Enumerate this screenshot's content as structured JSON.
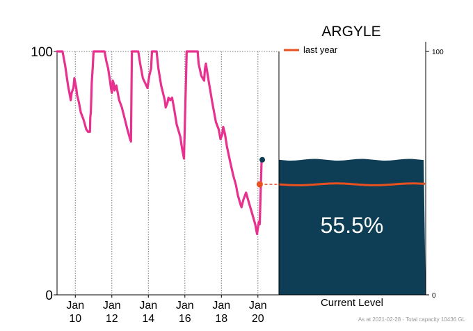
{
  "chart_data": {
    "type": "line",
    "title": "ARGYLE",
    "y_left_ticks": [
      "100",
      "0"
    ],
    "y_right_ticks": [
      "100",
      "0"
    ],
    "ylim": [
      0,
      100
    ],
    "x_ticks": [
      {
        "month": "Jan",
        "year": "10",
        "x": 2010
      },
      {
        "month": "Jan",
        "year": "12",
        "x": 2012
      },
      {
        "month": "Jan",
        "year": "14",
        "x": 2014
      },
      {
        "month": "Jan",
        "year": "16",
        "x": 2016
      },
      {
        "month": "Jan",
        "year": "18",
        "x": 2018
      },
      {
        "month": "Jan",
        "year": "20",
        "x": 2020
      }
    ],
    "xlim": [
      2009.0,
      2021.15
    ],
    "legend": {
      "label": "last year",
      "color": "#e8501f",
      "position": "top-left of right panel"
    },
    "series": [
      {
        "color": "#e8308f",
        "points": [
          [
            2009.0,
            100
          ],
          [
            2009.3,
            100
          ],
          [
            2009.45,
            94
          ],
          [
            2009.6,
            86
          ],
          [
            2009.75,
            80
          ],
          [
            2009.8,
            83
          ],
          [
            2009.9,
            85
          ],
          [
            2009.95,
            89
          ],
          [
            2010.05,
            85
          ],
          [
            2010.1,
            82
          ],
          [
            2010.2,
            79
          ],
          [
            2010.3,
            75
          ],
          [
            2010.45,
            72
          ],
          [
            2010.6,
            68
          ],
          [
            2010.7,
            67
          ],
          [
            2010.8,
            67
          ],
          [
            2010.82,
            73
          ],
          [
            2010.85,
            75
          ],
          [
            2010.9,
            87
          ],
          [
            2010.95,
            93
          ],
          [
            2011.0,
            100
          ],
          [
            2011.6,
            100
          ],
          [
            2011.7,
            96
          ],
          [
            2011.8,
            93
          ],
          [
            2011.9,
            88
          ],
          [
            2011.95,
            85
          ],
          [
            2012.0,
            83
          ],
          [
            2012.05,
            88
          ],
          [
            2012.1,
            87
          ],
          [
            2012.15,
            84
          ],
          [
            2012.25,
            86
          ],
          [
            2012.3,
            84
          ],
          [
            2012.4,
            80
          ],
          [
            2012.55,
            77
          ],
          [
            2012.75,
            71
          ],
          [
            2012.85,
            68
          ],
          [
            2013.0,
            64
          ],
          [
            2013.05,
            63
          ],
          [
            2013.1,
            100
          ],
          [
            2013.45,
            100
          ],
          [
            2013.55,
            95
          ],
          [
            2013.7,
            89
          ],
          [
            2013.95,
            85
          ],
          [
            2014.05,
            90
          ],
          [
            2014.15,
            93
          ],
          [
            2014.2,
            100
          ],
          [
            2014.45,
            100
          ],
          [
            2014.55,
            93
          ],
          [
            2014.7,
            86
          ],
          [
            2014.9,
            80
          ],
          [
            2014.95,
            77
          ],
          [
            2015.05,
            79
          ],
          [
            2015.1,
            81
          ],
          [
            2015.2,
            80
          ],
          [
            2015.3,
            81
          ],
          [
            2015.4,
            77
          ],
          [
            2015.55,
            70
          ],
          [
            2015.75,
            65
          ],
          [
            2015.85,
            60
          ],
          [
            2015.95,
            56
          ],
          [
            2016.1,
            100
          ],
          [
            2016.7,
            100
          ],
          [
            2016.75,
            95
          ],
          [
            2016.9,
            90
          ],
          [
            2017.05,
            88
          ],
          [
            2017.1,
            93
          ],
          [
            2017.15,
            95
          ],
          [
            2017.3,
            88
          ],
          [
            2017.5,
            79
          ],
          [
            2017.7,
            71
          ],
          [
            2017.85,
            68
          ],
          [
            2017.95,
            64
          ],
          [
            2018.05,
            66
          ],
          [
            2018.1,
            69
          ],
          [
            2018.2,
            66
          ],
          [
            2018.3,
            61
          ],
          [
            2018.5,
            54
          ],
          [
            2018.65,
            49
          ],
          [
            2018.8,
            45
          ],
          [
            2018.9,
            41
          ],
          [
            2019.05,
            37
          ],
          [
            2019.1,
            36
          ],
          [
            2019.2,
            39
          ],
          [
            2019.35,
            42
          ],
          [
            2019.5,
            38
          ],
          [
            2019.7,
            33
          ],
          [
            2019.85,
            29
          ],
          [
            2019.95,
            25
          ],
          [
            2020.05,
            30
          ],
          [
            2020.1,
            29
          ],
          [
            2020.15,
            42
          ],
          [
            2020.2,
            55.5
          ]
        ]
      }
    ],
    "last_year_marker": {
      "x": 2020.1,
      "y": 45.4
    },
    "current_level": {
      "label": "Current Level",
      "percent_text": "55.5%",
      "value": 55.5,
      "last_year_value": 45.4
    },
    "footnote": "As at 2021-02-28 - Total capacity 10436 GL",
    "colors": {
      "series": "#e8308f",
      "last_year": "#e8501f",
      "water": "#0e3e56",
      "grid": "#777777",
      "axis": "#000000"
    },
    "grid": true
  }
}
